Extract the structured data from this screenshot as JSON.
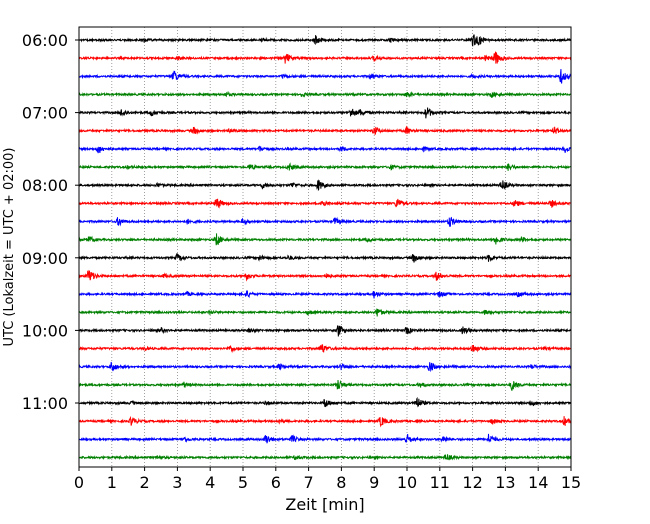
{
  "chart_data": {
    "type": "line",
    "title": "",
    "xlabel": "Zeit  [min]",
    "ylabel": "UTC (Lokalzeit = UTC + 02:00)",
    "xlim": [
      0,
      15
    ],
    "x_ticks": [
      "0",
      "1",
      "2",
      "3",
      "4",
      "5",
      "6",
      "7",
      "8",
      "9",
      "10",
      "11",
      "12",
      "13",
      "14",
      "15"
    ],
    "y_tick_labels": [
      "06:00",
      "07:00",
      "08:00",
      "09:00",
      "10:00",
      "11:00"
    ],
    "grid": "vertical dotted",
    "trace_colors": [
      "#000000",
      "#ff0000",
      "#0000ff",
      "#008000"
    ],
    "traces": [
      {
        "start": "06:00",
        "color": "#000000",
        "bursts": [
          [
            7.2,
            0.5
          ],
          [
            12.0,
            0.7
          ],
          [
            12.2,
            0.4
          ],
          [
            2.0,
            0.2
          ],
          [
            5.6,
            0.2
          ],
          [
            9.5,
            0.15
          ]
        ]
      },
      {
        "start": "06:15",
        "color": "#ff0000",
        "bursts": [
          [
            6.3,
            0.6
          ],
          [
            12.7,
            0.8
          ],
          [
            9.0,
            0.3
          ],
          [
            3.0,
            0.2
          ],
          [
            12.4,
            0.3
          ]
        ]
      },
      {
        "start": "06:30",
        "color": "#0000ff",
        "bursts": [
          [
            2.9,
            0.7
          ],
          [
            14.7,
            0.8
          ],
          [
            8.9,
            0.3
          ],
          [
            6.2,
            0.25
          ],
          [
            12.0,
            0.2
          ]
        ]
      },
      {
        "start": "06:45",
        "color": "#008000",
        "bursts": [
          [
            10.0,
            0.3
          ],
          [
            12.6,
            0.3
          ],
          [
            4.5,
            0.2
          ],
          [
            6.8,
            0.2
          ]
        ]
      },
      {
        "start": "07:00",
        "color": "#000000",
        "bursts": [
          [
            1.3,
            0.4
          ],
          [
            2.2,
            0.4
          ],
          [
            8.3,
            0.6
          ],
          [
            10.6,
            0.7
          ],
          [
            8.6,
            0.3
          ]
        ]
      },
      {
        "start": "07:15",
        "color": "#ff0000",
        "bursts": [
          [
            3.5,
            0.4
          ],
          [
            9.0,
            0.5
          ],
          [
            10.0,
            0.4
          ],
          [
            14.5,
            0.4
          ],
          [
            4.6,
            0.2
          ]
        ]
      },
      {
        "start": "07:30",
        "color": "#0000ff",
        "bursts": [
          [
            0.6,
            0.5
          ],
          [
            5.5,
            0.3
          ],
          [
            8.0,
            0.3
          ],
          [
            14.8,
            0.4
          ],
          [
            10.5,
            0.2
          ]
        ]
      },
      {
        "start": "07:45",
        "color": "#008000",
        "bursts": [
          [
            5.2,
            0.3
          ],
          [
            6.4,
            0.4
          ],
          [
            13.1,
            0.4
          ],
          [
            9.5,
            0.25
          ],
          [
            1.5,
            0.15
          ]
        ]
      },
      {
        "start": "08:00",
        "color": "#000000",
        "bursts": [
          [
            7.3,
            0.6
          ],
          [
            12.9,
            0.6
          ],
          [
            5.6,
            0.3
          ],
          [
            6.5,
            0.3
          ],
          [
            2.4,
            0.2
          ]
        ]
      },
      {
        "start": "08:15",
        "color": "#ff0000",
        "bursts": [
          [
            4.2,
            0.7
          ],
          [
            9.7,
            0.6
          ],
          [
            7.4,
            0.4
          ],
          [
            13.3,
            0.4
          ],
          [
            14.4,
            0.4
          ]
        ]
      },
      {
        "start": "08:30",
        "color": "#0000ff",
        "bursts": [
          [
            1.2,
            0.5
          ],
          [
            11.3,
            0.6
          ],
          [
            5.0,
            0.3
          ],
          [
            7.8,
            0.4
          ],
          [
            3.3,
            0.25
          ]
        ]
      },
      {
        "start": "08:45",
        "color": "#008000",
        "bursts": [
          [
            4.2,
            0.7
          ],
          [
            12.7,
            0.6
          ],
          [
            0.3,
            0.4
          ],
          [
            8.8,
            0.25
          ],
          [
            13.5,
            0.3
          ]
        ]
      },
      {
        "start": "09:00",
        "color": "#000000",
        "bursts": [
          [
            3.0,
            0.4
          ],
          [
            10.2,
            0.5
          ],
          [
            5.5,
            0.3
          ],
          [
            12.5,
            0.4
          ],
          [
            6.4,
            0.25
          ]
        ]
      },
      {
        "start": "09:15",
        "color": "#ff0000",
        "bursts": [
          [
            0.3,
            0.8
          ],
          [
            5.1,
            0.4
          ],
          [
            10.9,
            0.5
          ],
          [
            7.5,
            0.25
          ],
          [
            2.6,
            0.2
          ]
        ]
      },
      {
        "start": "09:30",
        "color": "#0000ff",
        "bursts": [
          [
            5.1,
            0.4
          ],
          [
            9.0,
            0.4
          ],
          [
            11.0,
            0.3
          ],
          [
            3.3,
            0.2
          ],
          [
            13.4,
            0.25
          ]
        ]
      },
      {
        "start": "09:45",
        "color": "#008000",
        "bursts": [
          [
            9.1,
            0.5
          ],
          [
            7.0,
            0.3
          ],
          [
            12.4,
            0.3
          ],
          [
            4.0,
            0.2
          ]
        ]
      },
      {
        "start": "10:00",
        "color": "#000000",
        "bursts": [
          [
            7.9,
            0.7
          ],
          [
            10.0,
            0.4
          ],
          [
            11.7,
            0.4
          ],
          [
            2.5,
            0.25
          ],
          [
            5.2,
            0.2
          ]
        ]
      },
      {
        "start": "10:15",
        "color": "#ff0000",
        "bursts": [
          [
            4.6,
            0.4
          ],
          [
            7.4,
            0.6
          ],
          [
            12.0,
            0.5
          ],
          [
            2.0,
            0.2
          ],
          [
            14.2,
            0.2
          ]
        ]
      },
      {
        "start": "10:30",
        "color": "#0000ff",
        "bursts": [
          [
            1.0,
            0.6
          ],
          [
            10.7,
            0.6
          ],
          [
            6.1,
            0.3
          ],
          [
            8.0,
            0.3
          ],
          [
            13.8,
            0.25
          ]
        ]
      },
      {
        "start": "10:45",
        "color": "#008000",
        "bursts": [
          [
            7.9,
            0.6
          ],
          [
            13.2,
            0.6
          ],
          [
            3.2,
            0.3
          ],
          [
            10.4,
            0.25
          ]
        ]
      },
      {
        "start": "11:00",
        "color": "#000000",
        "bursts": [
          [
            7.5,
            0.5
          ],
          [
            10.3,
            0.7
          ],
          [
            13.8,
            0.3
          ],
          [
            1.6,
            0.2
          ],
          [
            5.7,
            0.2
          ]
        ]
      },
      {
        "start": "11:15",
        "color": "#ff0000",
        "bursts": [
          [
            1.6,
            0.5
          ],
          [
            9.2,
            0.6
          ],
          [
            14.8,
            0.5
          ],
          [
            6.1,
            0.2
          ],
          [
            12.6,
            0.3
          ]
        ]
      },
      {
        "start": "11:30",
        "color": "#0000ff",
        "bursts": [
          [
            5.7,
            0.6
          ],
          [
            10.0,
            0.6
          ],
          [
            12.5,
            0.6
          ],
          [
            6.5,
            0.4
          ],
          [
            11.1,
            0.4
          ],
          [
            3.2,
            0.3
          ]
        ]
      },
      {
        "start": "11:45",
        "color": "#008000",
        "bursts": [
          [
            11.2,
            0.4
          ],
          [
            6.6,
            0.2
          ],
          [
            2.4,
            0.2
          ]
        ]
      }
    ]
  }
}
